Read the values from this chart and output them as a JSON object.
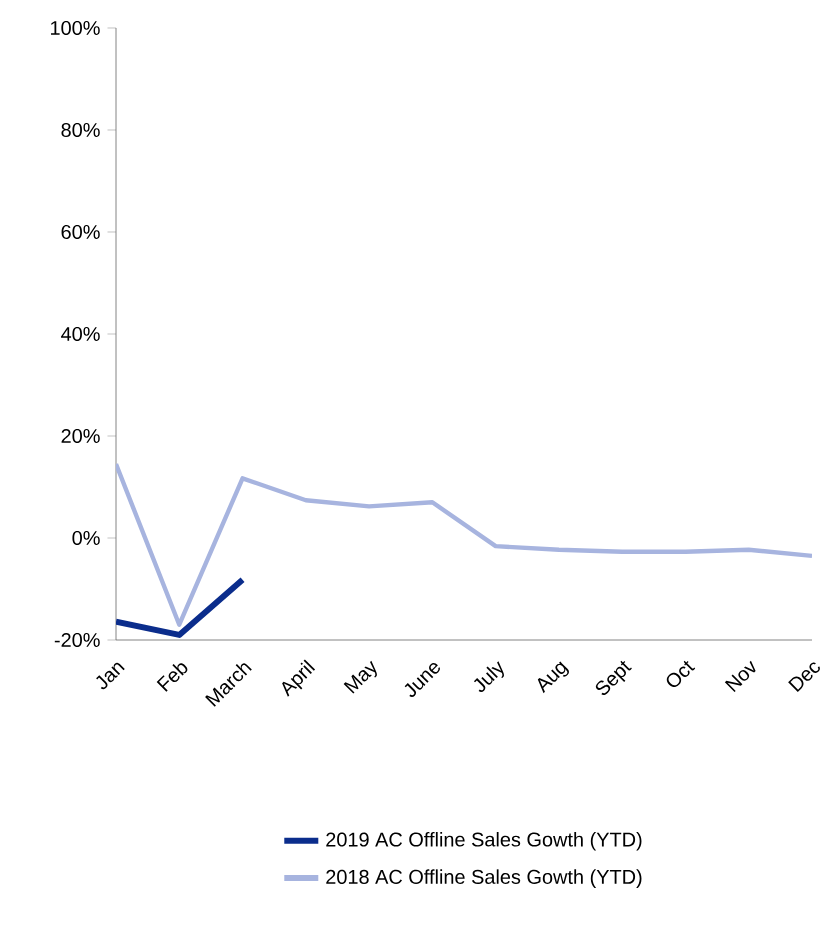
{
  "chart_data": {
    "type": "line",
    "categories": [
      "Jan",
      "Feb",
      "March",
      "April",
      "May",
      "June",
      "July",
      "Aug",
      "Sept",
      "Oct",
      "Nov",
      "Dec"
    ],
    "series": [
      {
        "name": "2019 AC Offline Sales Gowth (YTD)",
        "color": "#0b2d8c",
        "values": [
          -16.4,
          -19,
          -8.2,
          null,
          null,
          null,
          null,
          null,
          null,
          null,
          null,
          null
        ]
      },
      {
        "name": "2018 AC Offline Sales Gowth (YTD)",
        "color": "#a7b4df",
        "values": [
          14.5,
          -17,
          11.7,
          7.4,
          6.2,
          7,
          -1.6,
          -2.3,
          -2.7,
          -2.7,
          -2.3,
          -3.5
        ]
      }
    ],
    "ylim": [
      -20,
      100
    ],
    "yticks": [
      {
        "value": -20,
        "label": "-20%"
      },
      {
        "value": 0,
        "label": "0%"
      },
      {
        "value": 20,
        "label": "20%"
      },
      {
        "value": 40,
        "label": "40%"
      },
      {
        "value": 60,
        "label": "60%"
      },
      {
        "value": 80,
        "label": "80%"
      },
      {
        "value": 100,
        "label": "100%"
      }
    ],
    "grid": false,
    "legend": "bottom",
    "marker": "none",
    "line_style": "solid"
  }
}
